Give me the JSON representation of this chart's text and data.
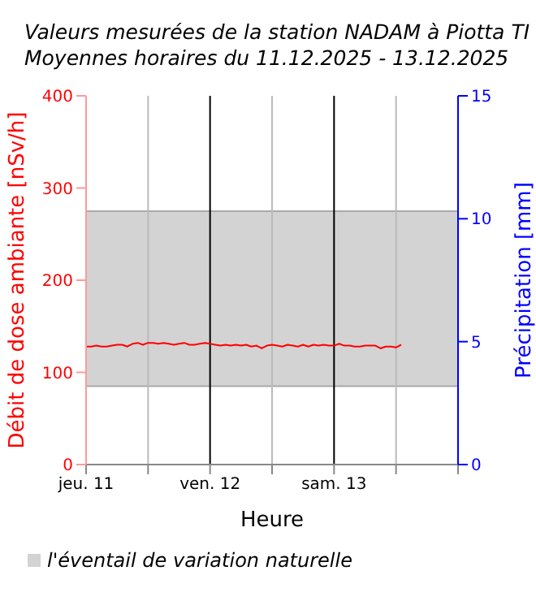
{
  "chart_data": {
    "type": "line",
    "title": "Valeurs mesurées de la station NADAM à Piotta TI",
    "subtitle": "Moyennes horaires du 11.12.2025 - 13.12.2025",
    "xlabel": "Heure",
    "ylabel": "Débit de dose ambiante [nSv/h]",
    "y2label": "Précipitation [mm]",
    "x": [
      "2025-12-11T00:00",
      "2025-12-11T01:00",
      "2025-12-11T02:00",
      "2025-12-11T03:00",
      "2025-12-11T04:00",
      "2025-12-11T05:00",
      "2025-12-11T06:00",
      "2025-12-11T07:00",
      "2025-12-11T08:00",
      "2025-12-11T09:00",
      "2025-12-11T10:00",
      "2025-12-11T11:00",
      "2025-12-11T12:00",
      "2025-12-11T13:00",
      "2025-12-11T14:00",
      "2025-12-11T15:00",
      "2025-12-11T16:00",
      "2025-12-11T17:00",
      "2025-12-11T18:00",
      "2025-12-11T19:00",
      "2025-12-11T20:00",
      "2025-12-11T21:00",
      "2025-12-11T22:00",
      "2025-12-11T23:00",
      "2025-12-12T00:00",
      "2025-12-12T01:00",
      "2025-12-12T02:00",
      "2025-12-12T03:00",
      "2025-12-12T04:00",
      "2025-12-12T05:00",
      "2025-12-12T06:00",
      "2025-12-12T07:00",
      "2025-12-12T08:00",
      "2025-12-12T09:00",
      "2025-12-12T10:00",
      "2025-12-12T11:00",
      "2025-12-12T12:00",
      "2025-12-12T13:00",
      "2025-12-12T14:00",
      "2025-12-12T15:00",
      "2025-12-12T16:00",
      "2025-12-12T17:00",
      "2025-12-12T18:00",
      "2025-12-12T19:00",
      "2025-12-12T20:00",
      "2025-12-12T21:00",
      "2025-12-12T22:00",
      "2025-12-12T23:00",
      "2025-12-13T00:00",
      "2025-12-13T01:00",
      "2025-12-13T02:00",
      "2025-12-13T03:00",
      "2025-12-13T04:00",
      "2025-12-13T05:00",
      "2025-12-13T06:00",
      "2025-12-13T07:00",
      "2025-12-13T08:00",
      "2025-12-13T09:00",
      "2025-12-13T10:00",
      "2025-12-13T11:00",
      "2025-12-13T12:00",
      "2025-12-13T13:00"
    ],
    "series": [
      {
        "color": "#ff0000",
        "axis": "y",
        "values": [
          128,
          128,
          129,
          128,
          128,
          129,
          130,
          130,
          128,
          131,
          132,
          130,
          132,
          132,
          131,
          132,
          131,
          130,
          131,
          132,
          130,
          130,
          131,
          132,
          131,
          130,
          129,
          130,
          129,
          130,
          129,
          130,
          128,
          129,
          126,
          129,
          130,
          129,
          128,
          130,
          129,
          128,
          130,
          128,
          130,
          129,
          130,
          129,
          129,
          131,
          129,
          129,
          128,
          128,
          129,
          129,
          129,
          126,
          128,
          128,
          127,
          130
        ]
      }
    ],
    "xlim": [
      "2025-12-11T00:00",
      "2025-12-14T00:00"
    ],
    "xticks": [
      {
        "value": "2025-12-11T00:00",
        "label": "jeu. 11"
      },
      {
        "value": "2025-12-11T12:00",
        "label": null
      },
      {
        "value": "2025-12-12T00:00",
        "label": "ven. 12"
      },
      {
        "value": "2025-12-12T12:00",
        "label": null
      },
      {
        "value": "2025-12-13T00:00",
        "label": "sam. 13"
      },
      {
        "value": "2025-12-13T12:00",
        "label": null
      },
      {
        "value": "2025-12-14T00:00",
        "label": null
      }
    ],
    "ylim": [
      0,
      400
    ],
    "yticks": [
      0,
      100,
      200,
      300,
      400
    ],
    "y2lim": [
      0,
      15
    ],
    "y2ticks": [
      0,
      5,
      10,
      15
    ],
    "bands": [
      {
        "axis": "y",
        "from": 85,
        "to": 275,
        "label": "l'éventail de variation naturelle",
        "color": "#d3d3d3"
      }
    ],
    "grid": "x",
    "legend": "bottom",
    "marker": "none",
    "line_style": "solid"
  }
}
